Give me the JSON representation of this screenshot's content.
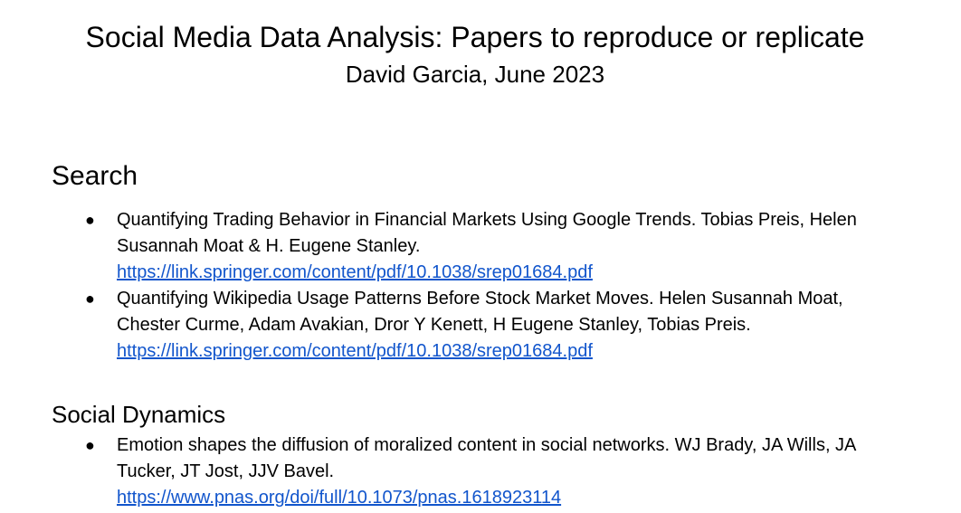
{
  "document": {
    "title": "Social Media Data Analysis: Papers to reproduce or replicate",
    "subtitle": "David Garcia, June 2023"
  },
  "sections": [
    {
      "heading": "Search",
      "entries": [
        {
          "bullet": "●",
          "text": "Quantifying Trading Behavior in Financial Markets Using Google Trends. Tobias Preis, Helen Susannah Moat & H. Eugene Stanley.",
          "link": "https://link.springer.com/content/pdf/10.1038/srep01684.pdf"
        },
        {
          "bullet": "●",
          "text": "Quantifying Wikipedia Usage Patterns Before Stock Market Moves. Helen Susannah Moat, Chester Curme, Adam Avakian, Dror Y Kenett, H Eugene Stanley, Tobias Preis.",
          "link": "https://link.springer.com/content/pdf/10.1038/srep01684.pdf"
        }
      ]
    },
    {
      "heading": "Social Dynamics",
      "entries": [
        {
          "bullet": "●",
          "text": "Emotion shapes the diffusion of moralized content in social networks. WJ Brady, JA Wills, JA Tucker, JT Jost, JJV Bavel.",
          "link": "https://www.pnas.org/doi/full/10.1073/pnas.1618923114"
        }
      ]
    }
  ],
  "colors": {
    "link": "#1155cc",
    "text": "#000000",
    "background": "#ffffff"
  }
}
